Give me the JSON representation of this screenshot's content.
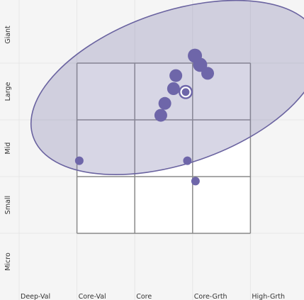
{
  "colors": {
    "background": "#f5f5f5",
    "gridline": "#e6e6e6",
    "box_outline": "#8a8a8a",
    "ellipse_fill": "#7c76a8",
    "ellipse_stroke": "#6a63a0",
    "point_fill": "#6e66a9",
    "highlight_ring": "#ffffff"
  },
  "chart_data": {
    "type": "scatter",
    "title": "",
    "xlabel": "",
    "ylabel": "",
    "x_categories": [
      "Deep-Val",
      "Core-Val",
      "Core",
      "Core-Grth",
      "High-Grth"
    ],
    "y_categories": [
      "Micro",
      "Small",
      "Mid",
      "Large",
      "Giant"
    ],
    "xlim": [
      0,
      5
    ],
    "ylim": [
      -0.9,
      4.1
    ],
    "grid": true,
    "style_box": {
      "x": [
        1,
        4
      ],
      "y": [
        0,
        3
      ]
    },
    "ellipse": {
      "cx": 2.71,
      "cy": 2.57,
      "rx": 2.61,
      "ry": 1.34,
      "rotation_deg": -19,
      "opacity": 0.3
    },
    "points": [
      {
        "x": 3.04,
        "y": 3.13,
        "size": 10
      },
      {
        "x": 3.13,
        "y": 2.97,
        "size": 10
      },
      {
        "x": 3.26,
        "y": 2.82,
        "size": 9
      },
      {
        "x": 2.71,
        "y": 2.78,
        "size": 9
      },
      {
        "x": 2.67,
        "y": 2.55,
        "size": 9
      },
      {
        "x": 2.52,
        "y": 2.29,
        "size": 9
      },
      {
        "x": 2.45,
        "y": 2.08,
        "size": 9
      },
      {
        "x": 1.04,
        "y": 1.28,
        "size": 6
      },
      {
        "x": 2.91,
        "y": 1.28,
        "size": 6
      },
      {
        "x": 3.05,
        "y": 0.92,
        "size": 6
      }
    ],
    "highlight": {
      "x": 2.88,
      "y": 2.49
    }
  }
}
